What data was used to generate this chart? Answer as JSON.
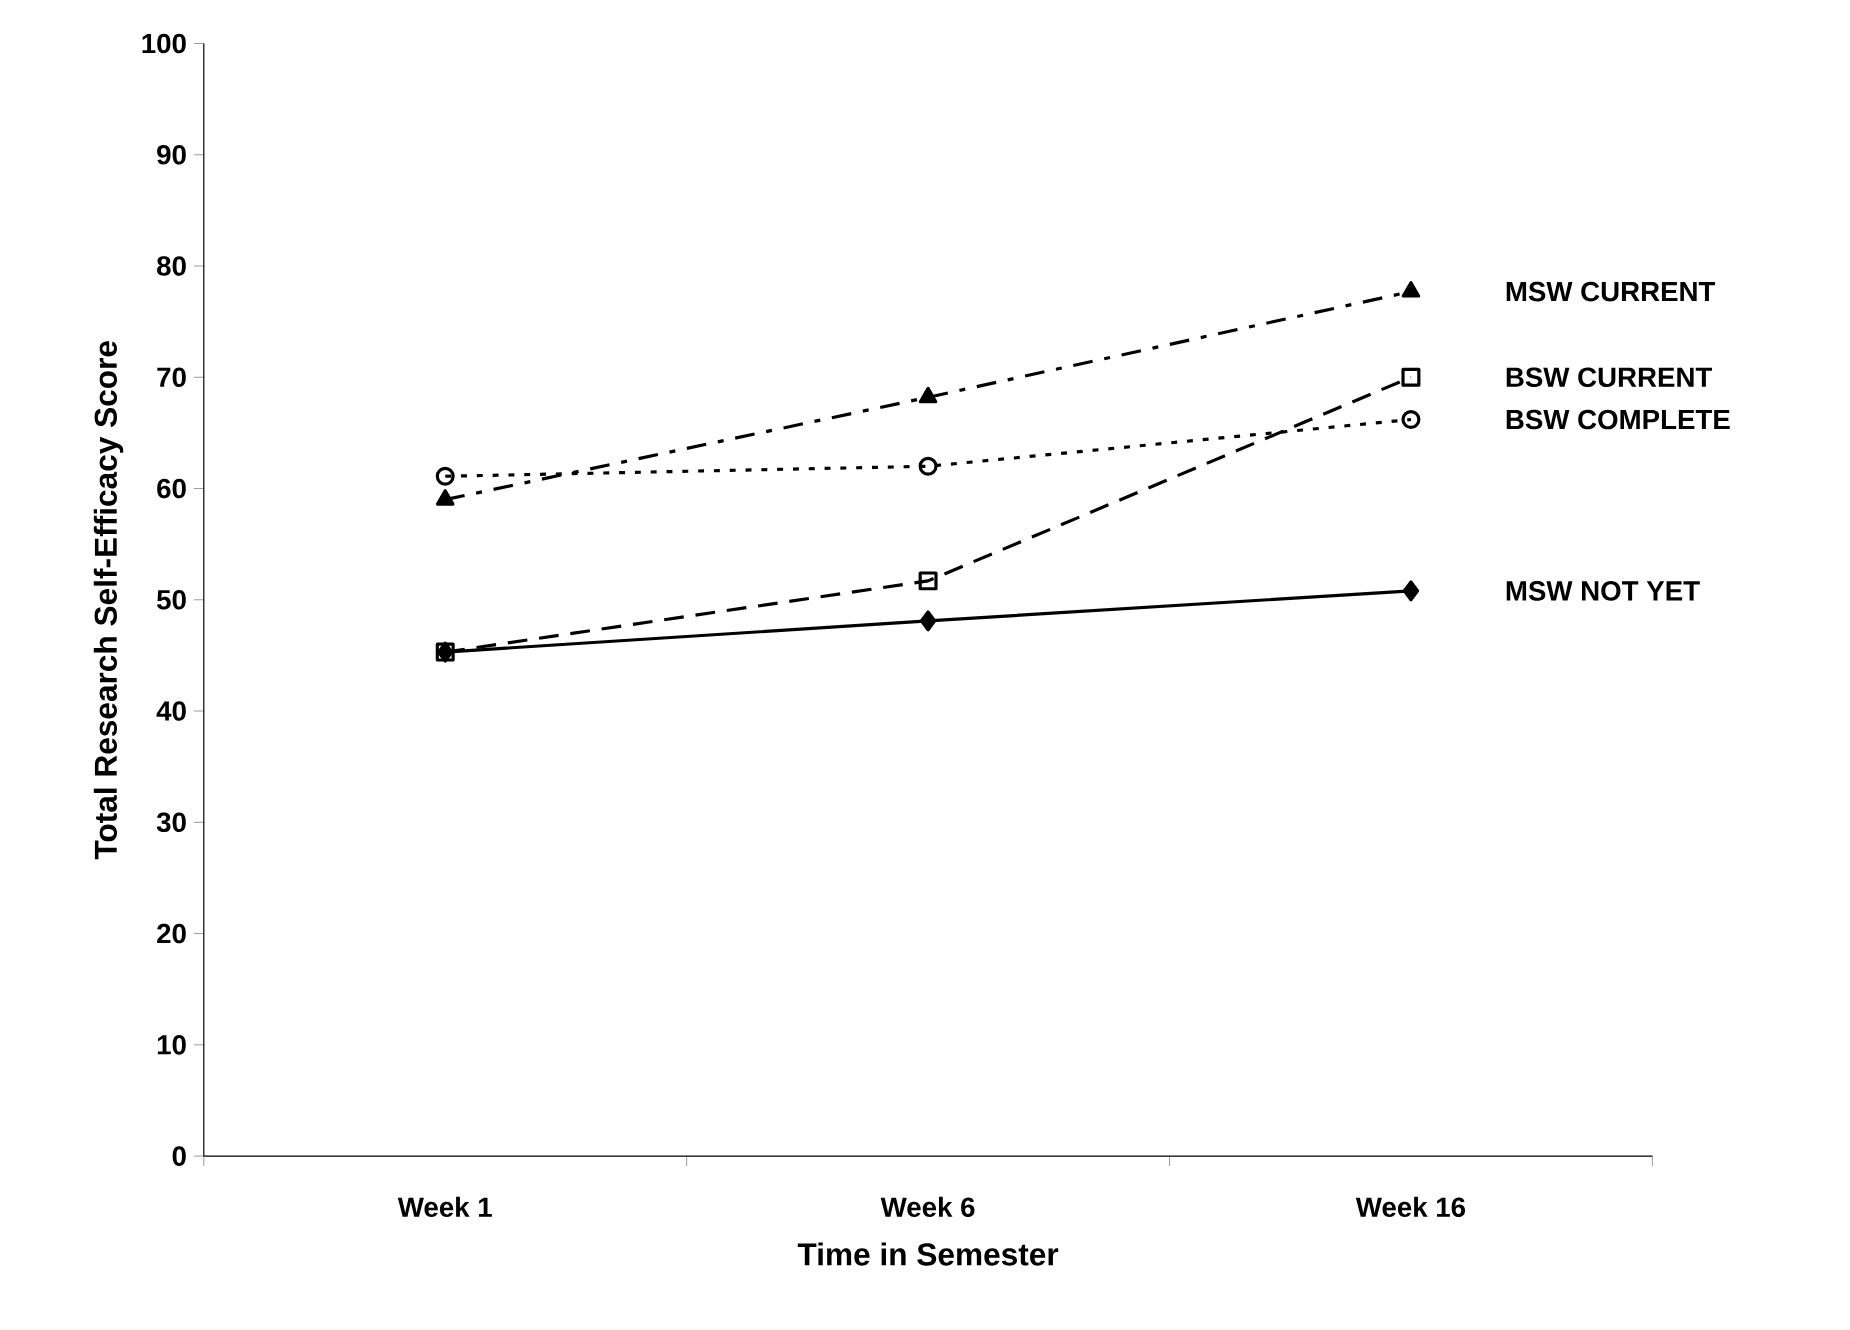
{
  "chart_data": {
    "type": "line",
    "xlabel": "Time in Semester",
    "ylabel": "Total Research Self-Efficacy Score",
    "categories": [
      "Week 1",
      "Week 6",
      "Week 16"
    ],
    "ylim": [
      0,
      100
    ],
    "yticks": [
      0,
      10,
      20,
      30,
      40,
      50,
      60,
      70,
      80,
      90,
      100
    ],
    "grid": false,
    "series": [
      {
        "name": "MSW CURRENT",
        "color": "#000000",
        "values": [
          59.0,
          68.2,
          77.7
        ],
        "marker": "triangle",
        "line_style": "dashdot"
      },
      {
        "name": "BSW CURRENT",
        "color": "#000000",
        "values": [
          45.3,
          51.7,
          70.0
        ],
        "marker": "square",
        "line_style": "dashed"
      },
      {
        "name": "BSW COMPLETE",
        "color": "#000000",
        "values": [
          61.1,
          62.0,
          66.2
        ],
        "marker": "circle",
        "line_style": "dotted"
      },
      {
        "name": "MSW NOT YET",
        "color": "#000000",
        "values": [
          45.3,
          48.1,
          50.8
        ],
        "marker": "diamond",
        "line_style": "solid"
      }
    ]
  }
}
